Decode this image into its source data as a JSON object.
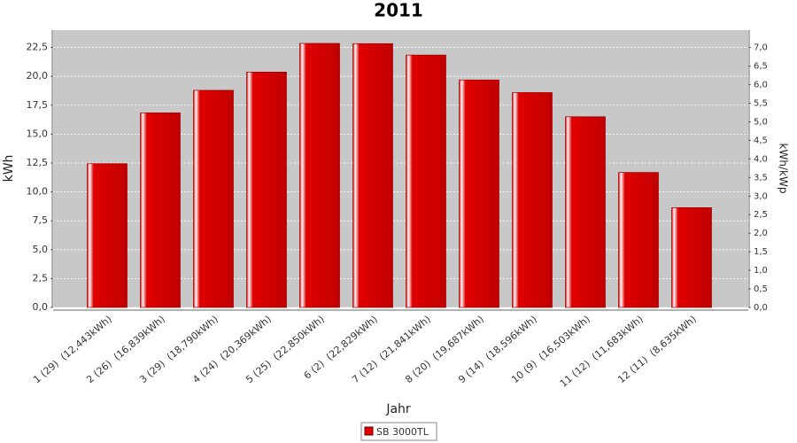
{
  "chart_data": {
    "type": "bar",
    "title": "2011",
    "x_label": "Jahr",
    "y_label": "kWh",
    "y2_label": "kWh/kWp",
    "categories": [
      "1 (29)  (12,443kWh)",
      "2 (26)  (16,839kWh)",
      "3 (29)  (18,790kWh)",
      "4 (24)  (20,369kWh)",
      "5 (25)  (22,850kWh)",
      "6 (2)  (22,829kWh)",
      "7 (12)  (21,841kWh)",
      "8 (20)  (19,687kWh)",
      "9 (14)  (18,596kWh)",
      "10 (9)  (16,503kWh)",
      "11 (12)  (11,683kWh)",
      "12 (11)  (8,635kWh)"
    ],
    "series": [
      {
        "name": "SB 3000TL",
        "color": "#e00000",
        "values": [
          12.443,
          16.839,
          18.79,
          20.369,
          22.85,
          22.829,
          21.841,
          19.687,
          18.596,
          16.503,
          11.683,
          8.635
        ]
      }
    ],
    "ylim": [
      0,
      24
    ],
    "yticks": [
      {
        "value": 0,
        "label": "0,0"
      },
      {
        "value": 2.5,
        "label": "2,5"
      },
      {
        "value": 5,
        "label": "5,0"
      },
      {
        "value": 7.5,
        "label": "7,5"
      },
      {
        "value": 10,
        "label": "10,0"
      },
      {
        "value": 12.5,
        "label": "12,5"
      },
      {
        "value": 15,
        "label": "15,0"
      },
      {
        "value": 17.5,
        "label": "17,5"
      },
      {
        "value": 20,
        "label": "20,0"
      },
      {
        "value": 22.5,
        "label": "22,5"
      }
    ],
    "y2lim": [
      0,
      7.47
    ],
    "y2ticks": [
      {
        "value": 0,
        "label": "0,0"
      },
      {
        "value": 0.5,
        "label": "0,5"
      },
      {
        "value": 1,
        "label": "1,0"
      },
      {
        "value": 1.5,
        "label": "1,5"
      },
      {
        "value": 2,
        "label": "2,0"
      },
      {
        "value": 2.5,
        "label": "2,5"
      },
      {
        "value": 3,
        "label": "3,0"
      },
      {
        "value": 3.5,
        "label": "3,5"
      },
      {
        "value": 4,
        "label": "4,0"
      },
      {
        "value": 4.5,
        "label": "4,5"
      },
      {
        "value": 5,
        "label": "5,0"
      },
      {
        "value": 5.5,
        "label": "5,5"
      },
      {
        "value": 6,
        "label": "6,0"
      },
      {
        "value": 6.5,
        "label": "6,5"
      },
      {
        "value": 7,
        "label": "7,0"
      }
    ],
    "grid": true,
    "legend": "bottom"
  }
}
